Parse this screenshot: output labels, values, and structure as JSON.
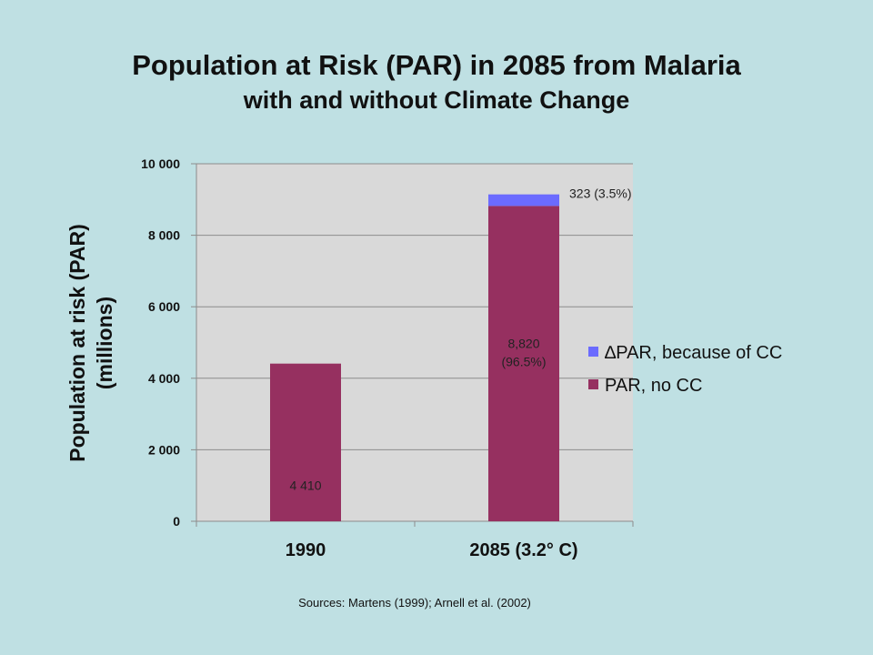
{
  "title": "Population at Risk (PAR) in 2085 from Malaria",
  "subtitle": "with and without Climate Change",
  "source": "Sources: Martens (1999); Arnell et al. (2002)",
  "chart_data": {
    "type": "bar",
    "stacked": true,
    "categories": [
      "1990",
      "2085 (3.2° C)"
    ],
    "series": [
      {
        "name": "PAR, no CC",
        "values": [
          4410,
          8820
        ],
        "color": "#963060",
        "labels": [
          "4 410",
          "8,820|(96.5%)"
        ]
      },
      {
        "name": "∆PAR, because of CC",
        "values": [
          0,
          323
        ],
        "color": "#6b6bff",
        "labels": [
          "",
          "323 (3.5%)"
        ]
      }
    ],
    "ylabel": "Population at risk (PAR)|(millions)",
    "ylim": [
      0,
      10000
    ],
    "yticks": [
      0,
      2000,
      4000,
      6000,
      8000,
      10000
    ],
    "ytick_labels": [
      "0",
      "2 000",
      "4 000",
      "6 000",
      "8 000",
      "10 000"
    ],
    "grid": true,
    "plot_background": "#d9d9d9",
    "legend_position": "right"
  }
}
